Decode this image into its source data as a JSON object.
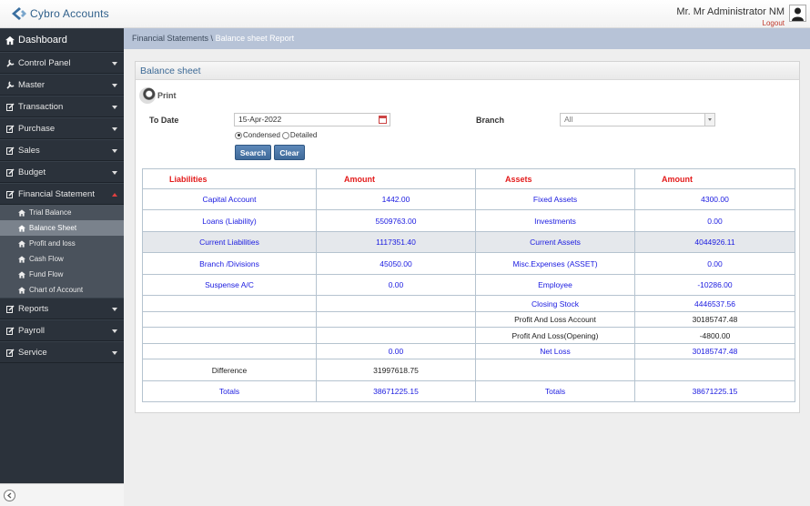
{
  "app": {
    "brand": "Cybro Accounts",
    "user_name": "Mr. Mr Administrator NM",
    "logout_label": "Logout"
  },
  "sidebar": {
    "dashboard": "Dashboard",
    "items": [
      {
        "label": "Control Panel"
      },
      {
        "label": "Master"
      },
      {
        "label": "Transaction"
      },
      {
        "label": "Purchase"
      },
      {
        "label": "Sales"
      },
      {
        "label": "Budget"
      },
      {
        "label": "Financial Statement"
      }
    ],
    "sub_items": [
      {
        "label": "Trial Balance"
      },
      {
        "label": "Balance Sheet"
      },
      {
        "label": "Profit and loss"
      },
      {
        "label": "Cash Flow"
      },
      {
        "label": "Fund Flow"
      },
      {
        "label": "Chart of Account"
      }
    ],
    "items_after": [
      {
        "label": "Reports"
      },
      {
        "label": "Payroll"
      },
      {
        "label": "Service"
      }
    ]
  },
  "breadcrumb": {
    "parent": "Financial Statements \\",
    "current": "Balance sheet Report"
  },
  "panel": {
    "title": "Balance sheet",
    "print_label": "Print",
    "to_date_label": "To Date",
    "to_date_value": "15-Apr-2022",
    "branch_label": "Branch",
    "branch_value": "All",
    "radio_condensed": "Condensed",
    "radio_detailed": "Detailed",
    "search_label": "Search",
    "clear_label": "Clear"
  },
  "table": {
    "headers": [
      "Liabilities",
      "Amount",
      "Assets",
      "Amount"
    ],
    "rows": [
      [
        "Capital Account",
        "1442.00",
        "Fixed Assets",
        "4300.00"
      ],
      [
        "Loans (Liability)",
        "5509763.00",
        "Investments",
        "0.00"
      ],
      [
        "Current Liabilities",
        "1117351.40",
        "Current Assets",
        "4044926.11"
      ],
      [
        "Branch /Divisions",
        "45050.00",
        "Misc.Expenses (ASSET)",
        "0.00"
      ],
      [
        "Suspense A/C",
        "0.00",
        "Employee",
        "-10286.00"
      ],
      [
        "",
        "",
        "Closing Stock",
        "4446537.56"
      ],
      [
        "",
        "",
        "Profit And Loss Account",
        "30185747.48"
      ],
      [
        "",
        "",
        "Profit And Loss(Opening)",
        "-4800.00"
      ],
      [
        "",
        "0.00",
        "Net Loss",
        "30185747.48"
      ],
      [
        "Difference",
        "31997618.75",
        "",
        ""
      ],
      [
        "Totals",
        "38671225.15",
        "Totals",
        "38671225.15"
      ]
    ]
  }
}
